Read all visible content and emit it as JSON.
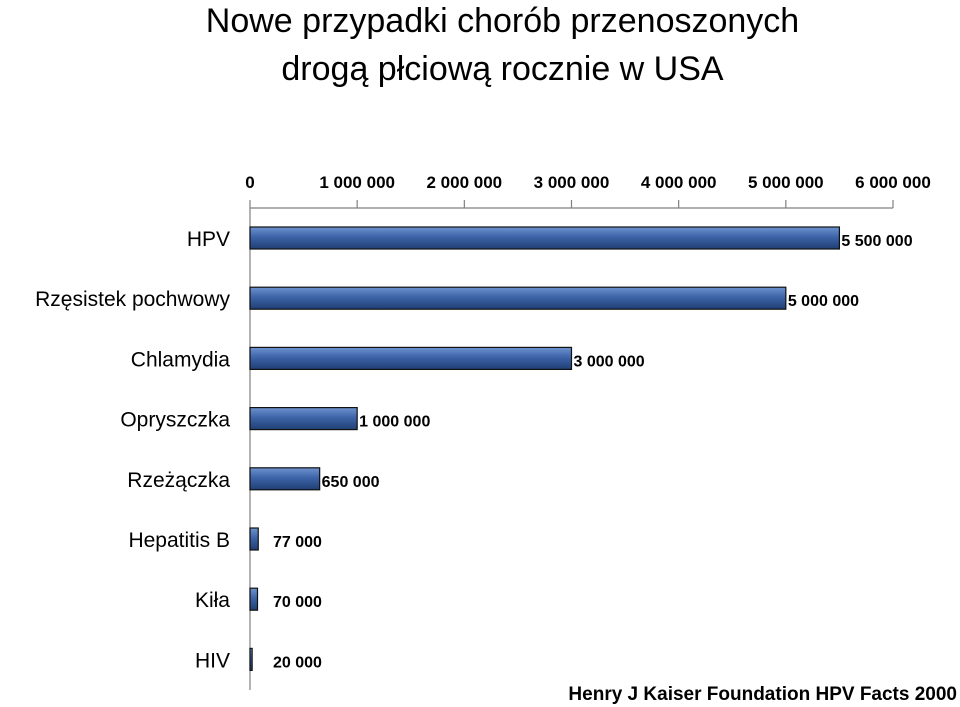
{
  "title_line1": "Nowe przypadki chorób przenoszonych",
  "title_line2": "drogą płciową rocznie w USA",
  "source": "Henry J Kaiser Foundation HPV Facts 2000",
  "bar_color": "#3a5f9e",
  "chart_data": {
    "type": "bar",
    "orientation": "horizontal",
    "title": "Nowe przypadki chorób przenoszonych drogą płciową rocznie w USA",
    "categories": [
      "HPV",
      "Rzęsistek pochwowy",
      "Chlamydia",
      "Opryszczka",
      "Rzeżączka",
      "Hepatitis B",
      "Kiła",
      "HIV"
    ],
    "values": [
      5500000,
      5000000,
      3000000,
      1000000,
      650000,
      77000,
      70000,
      20000
    ],
    "value_labels": [
      "5 500 000",
      "5 000 000",
      "3 000 000",
      "1 000 000",
      "650 000",
      "77 000",
      "70 000",
      "20 000"
    ],
    "xlim": [
      0,
      6000000
    ],
    "x_ticks": [
      0,
      1000000,
      2000000,
      3000000,
      4000000,
      5000000,
      6000000
    ],
    "x_tick_labels": [
      "0",
      "1 000 000",
      "2 000 000",
      "3 000 000",
      "4 000 000",
      "5 000 000",
      "6 000 000"
    ],
    "x_axis_position": "top",
    "grid": false,
    "legend": "none"
  }
}
